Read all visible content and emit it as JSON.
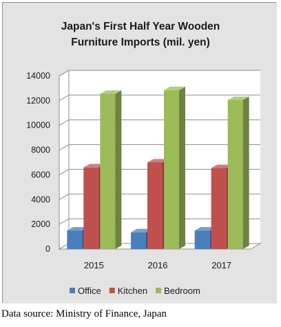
{
  "chart_data": {
    "type": "bar",
    "style": "3d-clustered-column",
    "title_lines": [
      "Japan's First Half Year Wooden",
      "Furniture Imports (mil. yen)"
    ],
    "categories": [
      "2015",
      "2016",
      "2017"
    ],
    "series": [
      {
        "name": "Office",
        "values": [
          1500,
          1350,
          1500
        ],
        "color": "#4a7ebb"
      },
      {
        "name": "Kitchen",
        "values": [
          6600,
          7000,
          6550
        ],
        "color": "#c0504d"
      },
      {
        "name": "Bedroom",
        "values": [
          12550,
          12850,
          12050
        ],
        "color": "#9bbb59"
      }
    ],
    "ylim": [
      0,
      14000
    ],
    "y_ticks": [
      "0",
      "2000",
      "4000",
      "6000",
      "8000",
      "10000",
      "12000",
      "14000"
    ],
    "grid": true,
    "legend_position": "bottom",
    "plot_background": "#ffffff",
    "outer_background": "#e3e3e3"
  },
  "source_note": "Data source: Ministry of Finance, Japan"
}
